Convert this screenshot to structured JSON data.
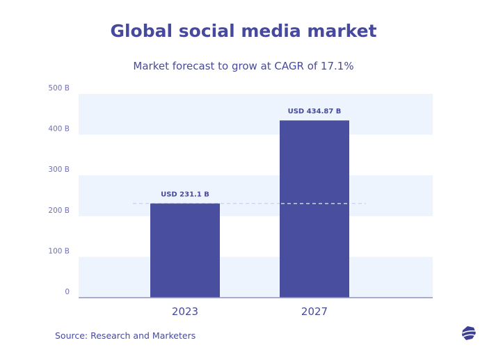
{
  "chart_data": {
    "type": "bar",
    "title": "Global social media market",
    "subtitle": "Market forecast to grow at CAGR of 17.1%",
    "categories": [
      "2023",
      "2027"
    ],
    "values": [
      231.1,
      434.87
    ],
    "data_labels": [
      "USD 231.1 B",
      "USD 434.87 B"
    ],
    "ylim": [
      0,
      500
    ],
    "yticks": [
      0,
      100,
      200,
      300,
      400,
      500
    ],
    "ytick_labels": [
      "0",
      "100 B",
      "200 B",
      "300 B",
      "400 B",
      "500 B"
    ],
    "xlabel": "",
    "ylabel": "",
    "grid": "alternating horizontal bands",
    "reference_line": {
      "value": 231.1,
      "style": "dashed"
    },
    "source": "Source: Research and Marketers",
    "colors": {
      "bar": "#4a4e9e",
      "band": "#edf4fd",
      "text": "#474a9c",
      "reference_line": "#c9d4ee"
    }
  },
  "logo": {
    "icon": "globe-wave-logo-icon"
  }
}
